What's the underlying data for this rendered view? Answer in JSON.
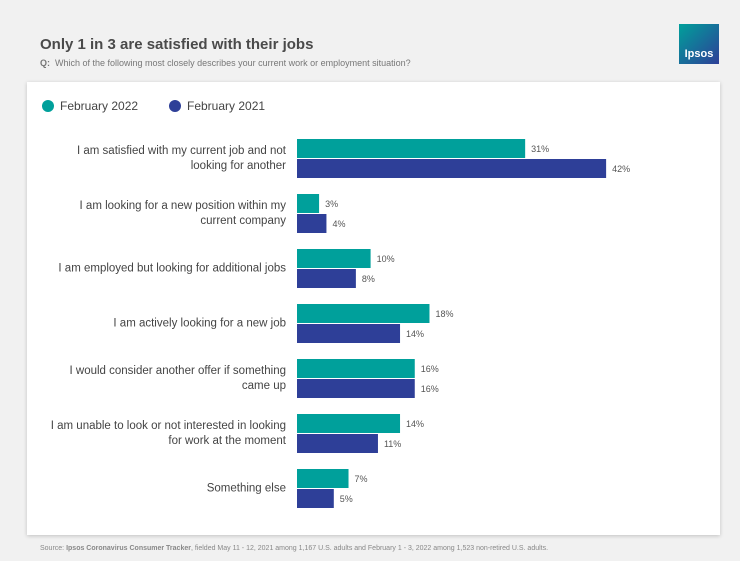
{
  "chart_data": {
    "type": "bar",
    "orientation": "horizontal",
    "title": "Only 1 in 3 are satisfied with their jobs",
    "question_prefix": "Q:",
    "subtitle": "Which of the following most closely describes your current work or employment situation?",
    "logo": "Ipsos",
    "categories": [
      "I am satisfied with my current job and not looking for another",
      "I am looking for a new position within my current company",
      "I am employed but looking for additional jobs",
      "I am actively looking for a new job",
      "I would consider another offer if something came up",
      "I am unable to look or not interested in looking for work at the moment",
      "Something else"
    ],
    "series": [
      {
        "name": "February 2022",
        "color": "#00a09b",
        "values": [
          31,
          3,
          10,
          18,
          16,
          14,
          7
        ],
        "value_labels": [
          "31%",
          "3%",
          "10%",
          "18%",
          "16%",
          "14%",
          "7%"
        ]
      },
      {
        "name": "February 2021",
        "color": "#2e3f98",
        "values": [
          42,
          4,
          8,
          14,
          16,
          11,
          5
        ],
        "value_labels": [
          "42%",
          "4%",
          "8%",
          "14%",
          "16%",
          "11%",
          "5%"
        ]
      }
    ],
    "legend": "top-left",
    "source_label": "Source:",
    "source_name": "Ipsos Coronavirus Consumer Tracker",
    "source_text": ", fielded May 11 - 12, 2021 among 1,167 U.S. adults and February 1 - 3, 2022 among 1,523 non-retired U.S. adults."
  }
}
